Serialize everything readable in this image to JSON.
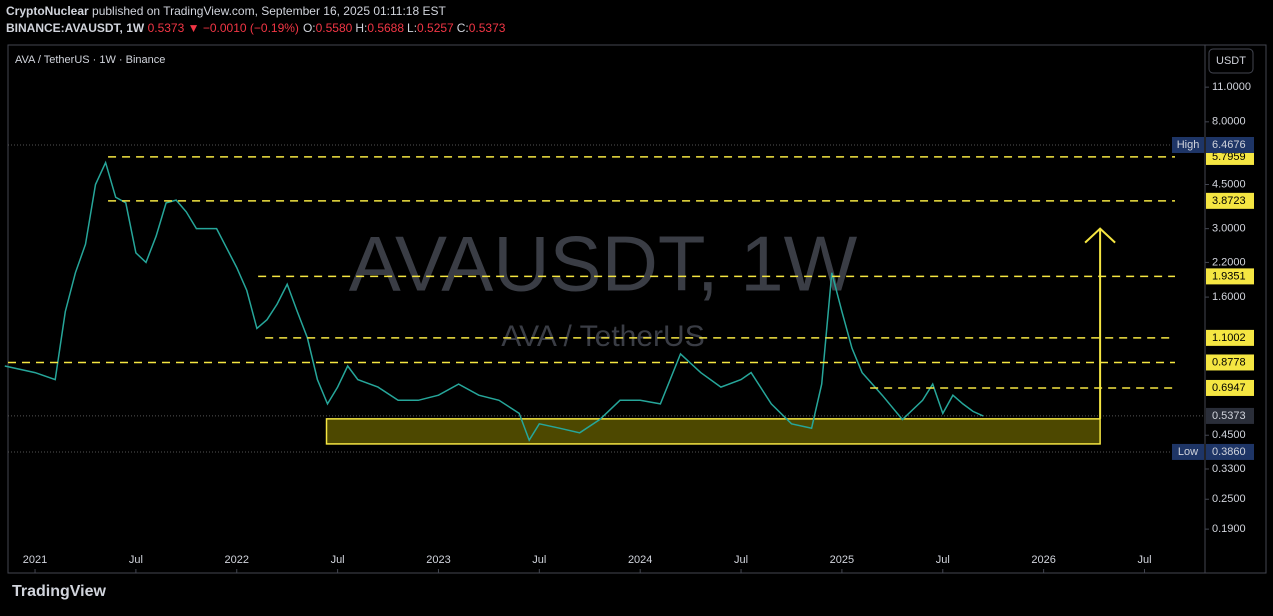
{
  "header": {
    "publisher": "CryptoNuclear",
    "published_text": "published on TradingView.com, September 16, 2025 01:11:18 EST",
    "symbol": "BINANCE:AVAUSDT, 1W",
    "last": "0.5373",
    "arrow": "▼",
    "change": "−0.0010 (−0.19%)",
    "ohlc": [
      {
        "label": "O:",
        "value": "0.5580"
      },
      {
        "label": "H:",
        "value": "0.5688"
      },
      {
        "label": "L:",
        "value": "0.5257"
      },
      {
        "label": "C:",
        "value": "0.5373"
      }
    ]
  },
  "footer": {
    "brand": "TradingView"
  },
  "chart_data": {
    "type": "line",
    "title": "AVA / TetherUS · 1W · Binance",
    "currency": "USDT",
    "watermark": "AVAUSDT, 1W",
    "watermark_sub": "AVA / TetherUS",
    "log_scale": true,
    "color": "#26a69a",
    "x": [
      2020.85,
      2021.0,
      2021.1,
      2021.15,
      2021.2,
      2021.25,
      2021.3,
      2021.35,
      2021.4,
      2021.45,
      2021.5,
      2021.55,
      2021.6,
      2021.65,
      2021.7,
      2021.75,
      2021.8,
      2021.9,
      2022.0,
      2022.05,
      2022.1,
      2022.15,
      2022.2,
      2022.25,
      2022.3,
      2022.35,
      2022.4,
      2022.45,
      2022.5,
      2022.55,
      2022.6,
      2022.7,
      2022.8,
      2022.9,
      2023.0,
      2023.1,
      2023.2,
      2023.3,
      2023.4,
      2023.45,
      2023.5,
      2023.6,
      2023.7,
      2023.8,
      2023.9,
      2024.0,
      2024.1,
      2024.2,
      2024.3,
      2024.4,
      2024.5,
      2024.55,
      2024.65,
      2024.75,
      2024.85,
      2024.9,
      2024.95,
      2025.0,
      2025.05,
      2025.1,
      2025.2,
      2025.3,
      2025.4,
      2025.45,
      2025.5,
      2025.55,
      2025.6,
      2025.65,
      2025.7
    ],
    "values": [
      0.85,
      0.8,
      0.75,
      1.4,
      2.0,
      2.6,
      4.5,
      5.5,
      4.0,
      3.8,
      2.4,
      2.2,
      2.8,
      3.8,
      3.9,
      3.5,
      3.0,
      3.0,
      2.1,
      1.7,
      1.2,
      1.3,
      1.5,
      1.8,
      1.4,
      1.1,
      0.75,
      0.6,
      0.7,
      0.85,
      0.75,
      0.7,
      0.62,
      0.62,
      0.65,
      0.72,
      0.65,
      0.62,
      0.55,
      0.43,
      0.5,
      0.48,
      0.46,
      0.52,
      0.62,
      0.62,
      0.6,
      0.95,
      0.8,
      0.7,
      0.75,
      0.8,
      0.6,
      0.5,
      0.48,
      0.72,
      2.0,
      1.4,
      1.0,
      0.8,
      0.65,
      0.52,
      0.62,
      0.72,
      0.55,
      0.65,
      0.6,
      0.56,
      0.5373
    ],
    "xlim": [
      2020.866,
      2026.8
    ],
    "ylim": [
      0.127,
      16.2
    ],
    "xticks": [
      2021,
      {
        "value": 2021.5,
        "label": "Jul"
      },
      2022,
      {
        "value": 2022.5,
        "label": "Jul"
      },
      2023,
      {
        "value": 2023.5,
        "label": "Jul"
      },
      2024,
      {
        "value": 2024.5,
        "label": "Jul"
      },
      2025,
      {
        "value": 2025.5,
        "label": "Jul"
      },
      2026,
      {
        "value": 2026.5,
        "label": "Jul"
      }
    ],
    "yticks": [
      {
        "value": 11,
        "label": "11.0000"
      },
      {
        "value": 8,
        "label": "8.0000"
      },
      {
        "value": 4.5,
        "label": "4.5000"
      },
      {
        "value": 3,
        "label": "3.0000"
      },
      {
        "value": 2.2,
        "label": "2.2000"
      },
      {
        "value": 1.6,
        "label": "1.6000"
      },
      {
        "value": 0.45,
        "label": "0.4500"
      },
      {
        "value": 0.33,
        "label": "0.3300"
      },
      {
        "value": 0.25,
        "label": "0.2500"
      },
      {
        "value": 0.19,
        "label": "0.1900"
      }
    ],
    "levels": [
      {
        "value": 5.7959,
        "start": 2021.362
      },
      {
        "value": 3.8723,
        "start": 2021.362
      },
      {
        "value": 1.9351,
        "start": 2022.106
      },
      {
        "value": 1.1002,
        "start": 2022.141
      },
      {
        "value": 0.8778,
        "start": 2020.866
      },
      {
        "value": 0.6947,
        "start": 2025.14
      }
    ],
    "high": {
      "label": "High",
      "value": 6.4676
    },
    "low": {
      "label": "Low",
      "value": {
        "value": 0.386,
        "label": "0.3860"
      }
    },
    "last_price": 0.5373,
    "zone": {
      "x": [
        2022.445,
        2026.28
      ],
      "y": [
        0.4155,
        0.523
      ]
    },
    "target": {
      "x": 2026.28,
      "from": 0.523,
      "to": 3.0
    }
  }
}
